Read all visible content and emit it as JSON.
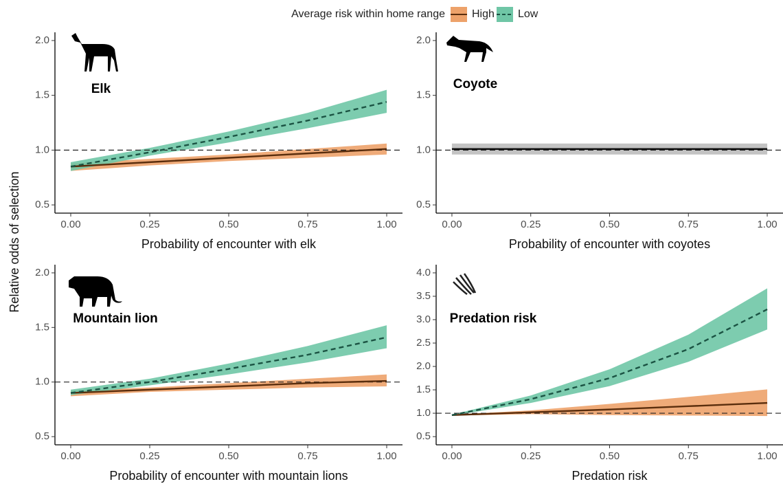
{
  "legend_title": "Average risk within home range",
  "y_label": "Relative odds of selection",
  "chart_data": [
    {
      "type": "line",
      "title": "Elk",
      "x_label": "Probability of encounter with elk",
      "x": [
        0,
        0.25,
        0.5,
        0.75,
        1
      ],
      "xlim": [
        -0.05,
        1.05
      ],
      "xticks": [
        {
          "value": 0,
          "label": "0.00"
        },
        {
          "value": 0.25,
          "label": "0.25"
        },
        {
          "value": 0.5,
          "label": "0.50"
        },
        {
          "value": 0.75,
          "label": "0.75"
        },
        {
          "value": 1,
          "label": "1.00"
        }
      ],
      "ylim": [
        0.425,
        2.075
      ],
      "yticks": [
        0.5,
        {
          "value": 1,
          "label": "1.0"
        },
        1.5,
        {
          "value": 2,
          "label": "2.0"
        }
      ],
      "reference_line": 1,
      "series": [
        {
          "name": "High",
          "color": "#5a2d0c",
          "fill": "#eda26a",
          "dashed": false,
          "values": [
            0.85,
            0.89,
            0.93,
            0.97,
            1.01
          ],
          "lower": [
            0.81,
            0.86,
            0.9,
            0.93,
            0.96
          ],
          "upper": [
            0.88,
            0.92,
            0.96,
            1.01,
            1.06
          ]
        },
        {
          "name": "Low",
          "color": "#1b5343",
          "fill": "#6fc6a6",
          "dashed": true,
          "values": [
            0.85,
            0.98,
            1.12,
            1.27,
            1.44
          ],
          "lower": [
            0.81,
            0.95,
            1.07,
            1.2,
            1.34
          ],
          "upper": [
            0.89,
            1.02,
            1.17,
            1.34,
            1.55
          ]
        }
      ]
    },
    {
      "type": "line",
      "title": "Coyote",
      "x_label": "Probability of encounter with coyotes",
      "x": [
        0,
        0.25,
        0.5,
        0.75,
        1
      ],
      "xlim": [
        -0.05,
        1.05
      ],
      "xticks": [
        {
          "value": 0,
          "label": "0.00"
        },
        {
          "value": 0.25,
          "label": "0.25"
        },
        {
          "value": 0.5,
          "label": "0.50"
        },
        {
          "value": 0.75,
          "label": "0.75"
        },
        {
          "value": 1,
          "label": "1.00"
        }
      ],
      "ylim": [
        0.425,
        2.075
      ],
      "yticks": [
        0.5,
        {
          "value": 1,
          "label": "1.0"
        },
        1.5,
        {
          "value": 2,
          "label": "2.0"
        }
      ],
      "reference_line": 1,
      "series": [
        {
          "color": "#111111",
          "fill": "#bdbdbd",
          "dashed": false,
          "values": [
            1.01,
            1.01,
            1.01,
            1.01,
            1.01
          ],
          "lower": [
            0.96,
            0.96,
            0.96,
            0.96,
            0.96
          ],
          "upper": [
            1.06,
            1.06,
            1.06,
            1.06,
            1.06
          ]
        }
      ]
    },
    {
      "type": "line",
      "title": "Mountain lion",
      "x_label": "Probability of encounter with mountain lions",
      "x": [
        0,
        0.25,
        0.5,
        0.75,
        1
      ],
      "xlim": [
        -0.05,
        1.05
      ],
      "xticks": [
        {
          "value": 0,
          "label": "0.00"
        },
        {
          "value": 0.25,
          "label": "0.25"
        },
        {
          "value": 0.5,
          "label": "0.50"
        },
        {
          "value": 0.75,
          "label": "0.75"
        },
        {
          "value": 1,
          "label": "1.00"
        }
      ],
      "ylim": [
        0.425,
        2.075
      ],
      "yticks": [
        0.5,
        {
          "value": 1,
          "label": "1.0"
        },
        1.5,
        {
          "value": 2,
          "label": "2.0"
        }
      ],
      "reference_line": 1,
      "series": [
        {
          "name": "High",
          "color": "#5a2d0c",
          "fill": "#eda26a",
          "dashed": false,
          "values": [
            0.9,
            0.93,
            0.96,
            0.99,
            1.01
          ],
          "lower": [
            0.87,
            0.91,
            0.93,
            0.95,
            0.96
          ],
          "upper": [
            0.92,
            0.95,
            0.99,
            1.03,
            1.07
          ]
        },
        {
          "name": "Low",
          "color": "#1b5343",
          "fill": "#6fc6a6",
          "dashed": true,
          "values": [
            0.9,
            1.0,
            1.12,
            1.25,
            1.41
          ],
          "lower": [
            0.88,
            0.97,
            1.07,
            1.18,
            1.31
          ],
          "upper": [
            0.93,
            1.03,
            1.17,
            1.33,
            1.52
          ]
        }
      ]
    },
    {
      "type": "line",
      "title": "Predation risk",
      "x_label": "Predation risk",
      "x": [
        0,
        0.25,
        0.5,
        0.75,
        1
      ],
      "xlim": [
        -0.05,
        1.05
      ],
      "xticks": [
        {
          "value": 0,
          "label": "0.00"
        },
        {
          "value": 0.25,
          "label": "0.25"
        },
        {
          "value": 0.5,
          "label": "0.50"
        },
        {
          "value": 0.75,
          "label": "0.75"
        },
        {
          "value": 1,
          "label": "1.00"
        }
      ],
      "ylim": [
        0.325,
        4.175
      ],
      "yticks": [
        0.5,
        {
          "value": 1,
          "label": "1.0"
        },
        1.5,
        {
          "value": 2,
          "label": "2.0"
        },
        2.5,
        {
          "value": 3,
          "label": "3.0"
        },
        3.5,
        {
          "value": 4,
          "label": "4.0"
        }
      ],
      "reference_line": 1,
      "series": [
        {
          "name": "High",
          "color": "#5a2d0c",
          "fill": "#eda26a",
          "dashed": false,
          "values": [
            0.96,
            1.02,
            1.08,
            1.15,
            1.22
          ],
          "lower": [
            0.95,
            0.98,
            0.96,
            0.95,
            0.94
          ],
          "upper": [
            0.97,
            1.06,
            1.2,
            1.35,
            1.51
          ]
        },
        {
          "name": "Low",
          "color": "#1b5343",
          "fill": "#6fc6a6",
          "dashed": true,
          "values": [
            0.96,
            1.3,
            1.75,
            2.37,
            3.22
          ],
          "lower": [
            0.95,
            1.22,
            1.58,
            2.1,
            2.79
          ],
          "upper": [
            0.97,
            1.38,
            1.94,
            2.68,
            3.67
          ]
        }
      ]
    }
  ]
}
